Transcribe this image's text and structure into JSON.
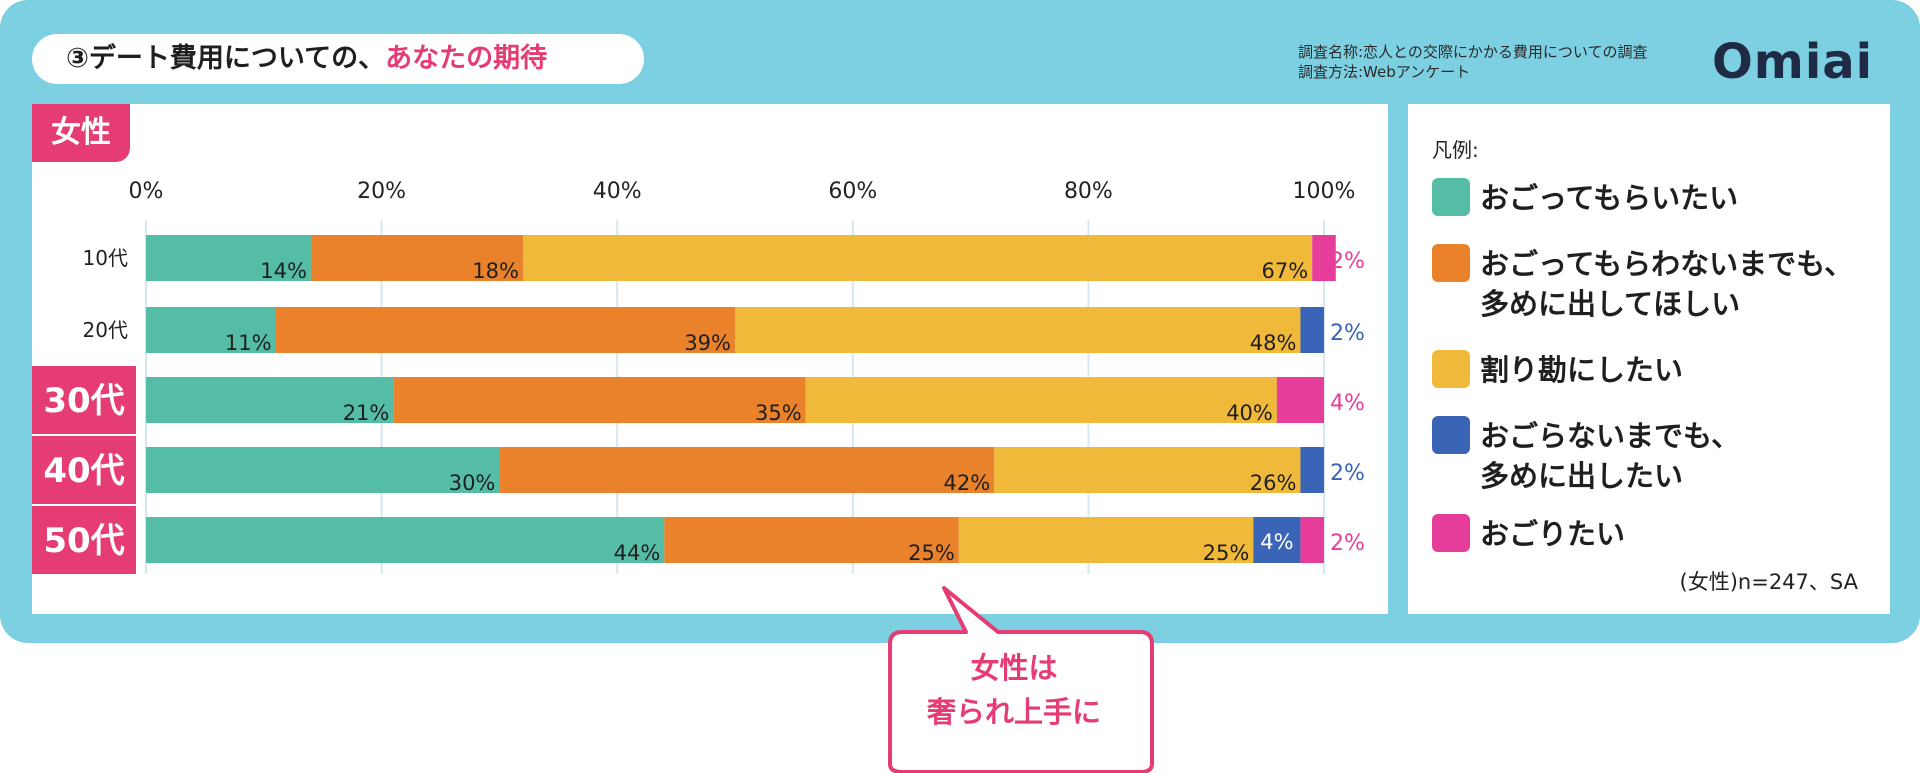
{
  "header": {
    "circled_number": "③",
    "title_main": "デート費用についての、",
    "title_accent": "あなたの期待",
    "survey_name": "調査名称:恋人との交際にかかる費用についての調査",
    "survey_method": "調査方法:Webアンケート",
    "logo": "Omiai"
  },
  "gender_tab": "女性",
  "legend": {
    "title": "凡例:",
    "items": [
      {
        "label": "おごってもらいたい",
        "color": "#55bca5"
      },
      {
        "label": "おごってもらわないまでも、\n多めに出してほしい",
        "color": "#e9822a"
      },
      {
        "label": "割り勘にしたい",
        "color": "#f0b93a"
      },
      {
        "label": "おごらないまでも、\n多めに出したい",
        "color": "#3a64b6"
      },
      {
        "label": "おごりたい",
        "color": "#e63c9a"
      }
    ],
    "note": "(女性)n=247、SA"
  },
  "callout": "女性は\n奢られ上手に",
  "chart_data": {
    "type": "bar",
    "orientation": "horizontal",
    "stacked": true,
    "categories": [
      "10代",
      "20代",
      "30代",
      "40代",
      "50代"
    ],
    "highlighted_categories": [
      "30代",
      "40代",
      "50代"
    ],
    "xlim": [
      0,
      100
    ],
    "x_ticks": [
      "0%",
      "20%",
      "40%",
      "60%",
      "80%",
      "100%"
    ],
    "grid": true,
    "series": [
      {
        "name": "おごってもらいたい",
        "color": "#55bca5",
        "values": [
          14,
          11,
          21,
          30,
          44
        ]
      },
      {
        "name": "おごってもらわないまでも、多めに出してほしい",
        "color": "#e9822a",
        "values": [
          18,
          39,
          35,
          42,
          25
        ]
      },
      {
        "name": "割り勘にしたい",
        "color": "#f0b93a",
        "values": [
          67,
          48,
          40,
          26,
          25
        ]
      },
      {
        "name": "おごらないまでも、多めに出したい",
        "color": "#3a64b6",
        "values": [
          0,
          2,
          0,
          2,
          4
        ]
      },
      {
        "name": "おごりたい",
        "color": "#e63c9a",
        "values": [
          2,
          0,
          4,
          0,
          2
        ]
      }
    ],
    "bar_labels": [
      [
        "14%",
        "18%",
        "67%",
        "",
        "2%"
      ],
      [
        "11%",
        "39%",
        "48%",
        "2%",
        ""
      ],
      [
        "21%",
        "35%",
        "40%",
        "",
        "4%"
      ],
      [
        "30%",
        "42%",
        "26%",
        "2%",
        ""
      ],
      [
        "44%",
        "25%",
        "25%",
        "4%",
        "2%"
      ]
    ]
  }
}
